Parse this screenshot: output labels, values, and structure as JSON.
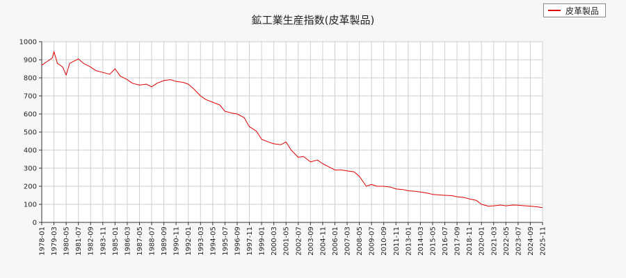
{
  "chart_data": {
    "type": "line",
    "title": "鉱工業生産指数(皮革製品)",
    "xlabel": "",
    "ylabel": "",
    "ylim": [
      0,
      1000
    ],
    "yticks": [
      0,
      100,
      200,
      300,
      400,
      500,
      600,
      700,
      800,
      900,
      1000
    ],
    "grid": true,
    "legend_position": "top-right",
    "x_tick_labels": [
      "1978-01",
      "1979-03",
      "1980-05",
      "1981-07",
      "1982-09",
      "1983-11",
      "1985-01",
      "1986-03",
      "1987-05",
      "1988-07",
      "1989-09",
      "1990-11",
      "1992-01",
      "1993-03",
      "1994-05",
      "1995-07",
      "1996-09",
      "1997-11",
      "1999-01",
      "2000-03",
      "2001-05",
      "2002-07",
      "2003-09",
      "2004-11",
      "2006-01",
      "2007-03",
      "2008-05",
      "2009-07",
      "2010-09",
      "2011-11",
      "2013-01",
      "2014-03",
      "2015-05",
      "2016-07",
      "2017-09",
      "2018-11",
      "2020-01",
      "2021-03",
      "2022-05",
      "2023-07",
      "2024-09",
      "2025-11"
    ],
    "series": [
      {
        "name": "皮革製品",
        "color": "#e00000",
        "x": [
          "1978-01",
          "1978-07",
          "1979-01",
          "1979-03",
          "1979-07",
          "1980-01",
          "1980-05",
          "1980-09",
          "1981-01",
          "1981-07",
          "1982-01",
          "1982-09",
          "1983-03",
          "1983-11",
          "1984-07",
          "1985-01",
          "1985-07",
          "1986-03",
          "1986-09",
          "1987-05",
          "1988-01",
          "1988-07",
          "1989-01",
          "1989-09",
          "1990-05",
          "1990-11",
          "1991-07",
          "1992-01",
          "1992-07",
          "1993-03",
          "1993-09",
          "1994-05",
          "1995-01",
          "1995-07",
          "1996-03",
          "1996-09",
          "1997-05",
          "1997-11",
          "1998-07",
          "1999-01",
          "1999-09",
          "2000-03",
          "2000-11",
          "2001-05",
          "2001-11",
          "2002-07",
          "2003-01",
          "2003-09",
          "2004-05",
          "2004-11",
          "2005-07",
          "2006-01",
          "2006-09",
          "2007-03",
          "2007-11",
          "2008-05",
          "2009-01",
          "2009-07",
          "2010-01",
          "2010-09",
          "2011-05",
          "2011-11",
          "2012-07",
          "2013-01",
          "2013-09",
          "2014-03",
          "2014-11",
          "2015-05",
          "2016-01",
          "2016-07",
          "2017-03",
          "2017-09",
          "2018-05",
          "2018-11",
          "2019-07",
          "2020-01",
          "2020-09",
          "2021-03",
          "2021-11",
          "2022-05",
          "2023-01",
          "2023-07",
          "2024-03",
          "2024-09",
          "2025-05",
          "2025-11"
        ],
        "values": [
          870,
          890,
          910,
          945,
          880,
          860,
          815,
          880,
          890,
          905,
          880,
          860,
          840,
          830,
          820,
          850,
          810,
          790,
          770,
          760,
          765,
          750,
          770,
          785,
          790,
          780,
          775,
          765,
          740,
          700,
          680,
          665,
          650,
          615,
          605,
          600,
          580,
          530,
          505,
          460,
          445,
          435,
          430,
          445,
          400,
          360,
          365,
          335,
          345,
          325,
          305,
          290,
          290,
          285,
          280,
          255,
          200,
          210,
          200,
          200,
          195,
          185,
          182,
          175,
          172,
          168,
          162,
          155,
          152,
          150,
          148,
          142,
          138,
          130,
          122,
          100,
          90,
          92,
          96,
          92,
          96,
          95,
          92,
          90,
          86,
          82
        ]
      }
    ]
  }
}
